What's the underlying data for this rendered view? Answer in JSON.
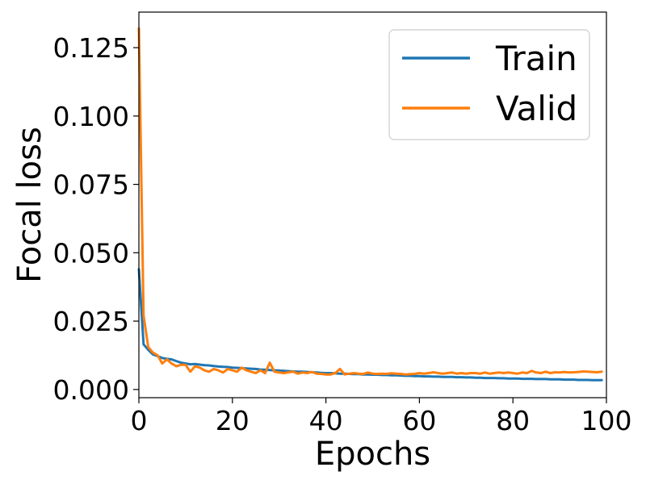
{
  "chart_data": {
    "type": "line",
    "xlabel": "Epochs",
    "ylabel": "Focal loss",
    "xlim": [
      0,
      100
    ],
    "ylim": [
      -0.003,
      0.138
    ],
    "xticks": [
      "0",
      "20",
      "40",
      "60",
      "80",
      "100"
    ],
    "yticks": [
      "0.000",
      "0.025",
      "0.050",
      "0.075",
      "0.100",
      "0.125"
    ],
    "grid": false,
    "legend_position": "upper right",
    "series": [
      {
        "name": "Train",
        "color": "#1f77b4",
        "x": [
          0,
          1,
          2,
          3,
          4,
          5,
          6,
          7,
          8,
          9,
          10,
          11,
          12,
          13,
          14,
          15,
          16,
          17,
          18,
          19,
          20,
          21,
          22,
          23,
          24,
          25,
          26,
          27,
          28,
          29,
          30,
          31,
          32,
          33,
          34,
          35,
          36,
          37,
          38,
          39,
          40,
          41,
          42,
          43,
          44,
          45,
          46,
          47,
          48,
          49,
          50,
          51,
          52,
          53,
          54,
          55,
          56,
          57,
          58,
          59,
          60,
          61,
          62,
          63,
          64,
          65,
          66,
          67,
          68,
          69,
          70,
          71,
          72,
          73,
          74,
          75,
          76,
          77,
          78,
          79,
          80,
          81,
          82,
          83,
          84,
          85,
          86,
          87,
          88,
          89,
          90,
          91,
          92,
          93,
          94,
          95,
          96,
          97,
          98,
          99
        ],
        "y": [
          0.044,
          0.0165,
          0.0145,
          0.0128,
          0.0122,
          0.0115,
          0.0112,
          0.011,
          0.0104,
          0.0098,
          0.0095,
          0.0092,
          0.0093,
          0.0091,
          0.0089,
          0.0088,
          0.0086,
          0.0084,
          0.0083,
          0.0082,
          0.008,
          0.0079,
          0.0078,
          0.0077,
          0.0076,
          0.0075,
          0.0073,
          0.0072,
          0.0071,
          0.007,
          0.0069,
          0.0068,
          0.0067,
          0.0066,
          0.0065,
          0.0065,
          0.0064,
          0.0063,
          0.0062,
          0.0061,
          0.006,
          0.006,
          0.0059,
          0.0058,
          0.0058,
          0.0057,
          0.0056,
          0.0056,
          0.0055,
          0.0055,
          0.0054,
          0.0054,
          0.0053,
          0.0053,
          0.0052,
          0.0052,
          0.0051,
          0.005,
          0.005,
          0.0049,
          0.0049,
          0.0048,
          0.0048,
          0.0047,
          0.0047,
          0.0046,
          0.0046,
          0.0046,
          0.0045,
          0.0045,
          0.0044,
          0.0044,
          0.0043,
          0.0043,
          0.0042,
          0.0042,
          0.0042,
          0.0041,
          0.0041,
          0.004,
          0.004,
          0.004,
          0.0039,
          0.0039,
          0.0039,
          0.0038,
          0.0038,
          0.0038,
          0.0037,
          0.0037,
          0.0037,
          0.0036,
          0.0036,
          0.0036,
          0.0035,
          0.0035,
          0.0035,
          0.0034,
          0.0034,
          0.0034
        ]
      },
      {
        "name": "Valid",
        "color": "#ff7f0e",
        "x": [
          0,
          1,
          2,
          3,
          4,
          5,
          6,
          7,
          8,
          9,
          10,
          11,
          12,
          13,
          14,
          15,
          16,
          17,
          18,
          19,
          20,
          21,
          22,
          23,
          24,
          25,
          26,
          27,
          28,
          29,
          30,
          31,
          32,
          33,
          34,
          35,
          36,
          37,
          38,
          39,
          40,
          41,
          42,
          43,
          44,
          45,
          46,
          47,
          48,
          49,
          50,
          51,
          52,
          53,
          54,
          55,
          56,
          57,
          58,
          59,
          60,
          61,
          62,
          63,
          64,
          65,
          66,
          67,
          68,
          69,
          70,
          71,
          72,
          73,
          74,
          75,
          76,
          77,
          78,
          79,
          80,
          81,
          82,
          83,
          84,
          85,
          86,
          87,
          88,
          89,
          90,
          91,
          92,
          93,
          94,
          95,
          96,
          97,
          98,
          99
        ],
        "y": [
          0.132,
          0.027,
          0.0155,
          0.0135,
          0.0125,
          0.0095,
          0.011,
          0.0095,
          0.0085,
          0.009,
          0.009,
          0.0065,
          0.0085,
          0.008,
          0.007,
          0.0065,
          0.0075,
          0.007,
          0.0062,
          0.0075,
          0.007,
          0.0065,
          0.008,
          0.007,
          0.0065,
          0.006,
          0.007,
          0.006,
          0.0098,
          0.0065,
          0.0062,
          0.006,
          0.0063,
          0.0065,
          0.0058,
          0.0062,
          0.006,
          0.0064,
          0.0058,
          0.0057,
          0.0055,
          0.0055,
          0.006,
          0.0075,
          0.0055,
          0.0058,
          0.006,
          0.0058,
          0.0057,
          0.0062,
          0.0058,
          0.0057,
          0.0058,
          0.0057,
          0.0059,
          0.0058,
          0.0057,
          0.0055,
          0.0056,
          0.0057,
          0.006,
          0.0058,
          0.006,
          0.0063,
          0.006,
          0.0058,
          0.006,
          0.0062,
          0.0058,
          0.006,
          0.0058,
          0.006,
          0.006,
          0.0058,
          0.0062,
          0.0058,
          0.006,
          0.0062,
          0.006,
          0.0062,
          0.006,
          0.0058,
          0.0062,
          0.006,
          0.0068,
          0.0062,
          0.006,
          0.0065,
          0.006,
          0.0063,
          0.0062,
          0.0064,
          0.0062,
          0.0063,
          0.0064,
          0.0066,
          0.0065,
          0.0064,
          0.0063,
          0.0065
        ]
      }
    ]
  }
}
